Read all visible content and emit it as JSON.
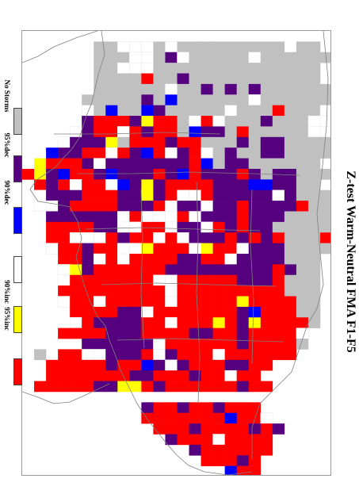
{
  "title": "Z-test Warm-Neutral FMA F1-F5",
  "legend": [
    {
      "label": "No Storms",
      "color": "#c0c0c0"
    },
    {
      "label": "95%dec",
      "color": "#55007f"
    },
    {
      "label": "90%dec",
      "color": "#0000ff"
    },
    {
      "label": "90%inc",
      "color": "#ffffff"
    },
    {
      "label": "95%inc",
      "color": "#ffff00"
    },
    {
      "label": "",
      "color": "#ff0000"
    }
  ],
  "codes": {
    "g": "#c0c0c0",
    "p": "#55007f",
    "b": "#0000ff",
    "w": "#ffffff",
    "y": "#ffff00",
    "r": "#ff0000"
  },
  "grid_rows": [
    "..........................",
    "......ggwwwgwggggggggg.gg.",
    "......gggwwgpwgggggwgggggg",
    "......ggwwwgggggggggggggg.",
    "......ggggrggpggggggggggg.",
    "......ggggggwggpgpgpgggggg",
    ".....gggggpgbggggggwgggggg",
    ".....wgbggbpgggggwgggrgggw",
    ".....prrrpyrrgwrwgggpgggww",
    "....wprrwrprrgbppgrgggggww",
    "...wpppygrrrprrgggpgppgggg",
    "..bpprrwrpbrwprwgpggppgggg",
    ".yrrrpwppppppprbgppgggggg.",
    "rypbrrpbppprpbrppprpgppggg",
    ".rprwrrwbpyprrrrpppbbppgg.",
    ".wppprrrppyprwwrpppppwpggg",
    ".wwprrrrppprwppwpprpppprgg",
    "..ppppppwrwwwrwppprpppgggg",
    "..rrrrppwwrrwppwrprppggggg",
    "..rrwwwrprrwrwppprprprgggr",
    "..wrrprrwwyrrrwyrrwpppgggg",
    "...rrpwrwrrrrpprrwppppggg.",
    "...wyprrrrrrppppppppprpgg.",
    "...wrrrrrrrwwrrrrrppprggg.",
    "...rrrrrrrrrwrrrrrrrrrggg.",
    "...wrrwrrrrrwrrrrryrrrrgg.",
    "....rrrrppwrrrrrrrpbrrrgg.",
    "....wrpppprrwrrryrpyrrrrg.",
    "...rrrrppprrrrpprrprrrrw..",
    ".....ppppppwrrrrrrprrrrg..",
    ".g.rrwwppprwprrrwrrrrrr...",
    "..rrrrrprrbpwprrrpprr.....",
    "..rrrrrrrpprrrprrwrr......",
    ".rrrrrppyyrprrrrrrprr.....",
    "......................",
    "..........prrprrprrr......",
    "..........rrrrrrrbrrw.....",
    "...........rrrprrrrprp....",
    "............prrrwrrrr.....",
    "..............prrrrrr.....",
    "...............rrrpr......",
    ".................brr......"
  ]
}
